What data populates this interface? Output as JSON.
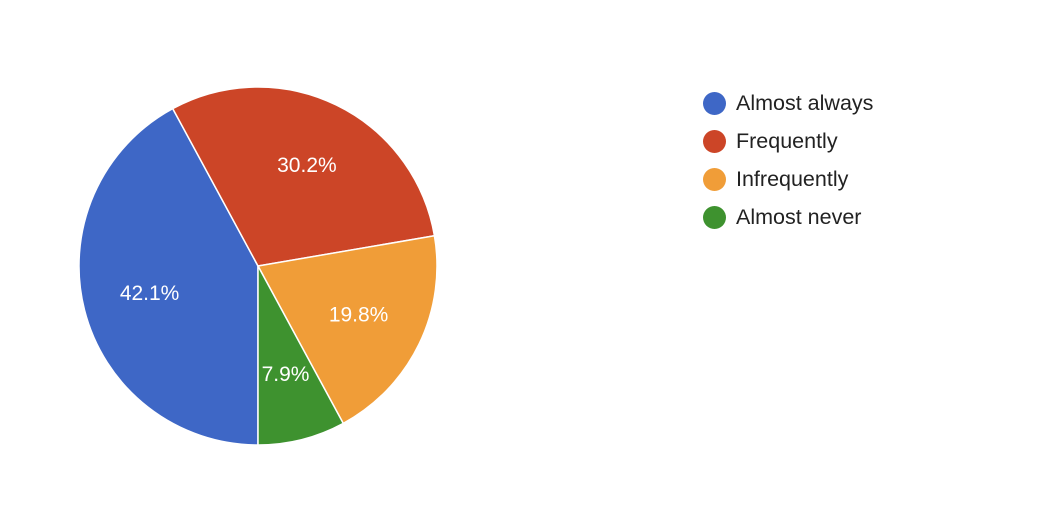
{
  "chart_data": {
    "type": "pie",
    "title": "",
    "categories": [
      "Almost always",
      "Frequently",
      "Infrequently",
      "Almost never"
    ],
    "values": [
      42.1,
      30.2,
      19.8,
      7.9
    ],
    "value_labels": [
      "42.1%",
      "30.2%",
      "19.8%",
      "7.9%"
    ],
    "colors": [
      "#3e67c6",
      "#cc4527",
      "#f09d38",
      "#3e922f"
    ],
    "legend_position": "right",
    "start_angle_deg": 90,
    "direction": "clockwise"
  }
}
